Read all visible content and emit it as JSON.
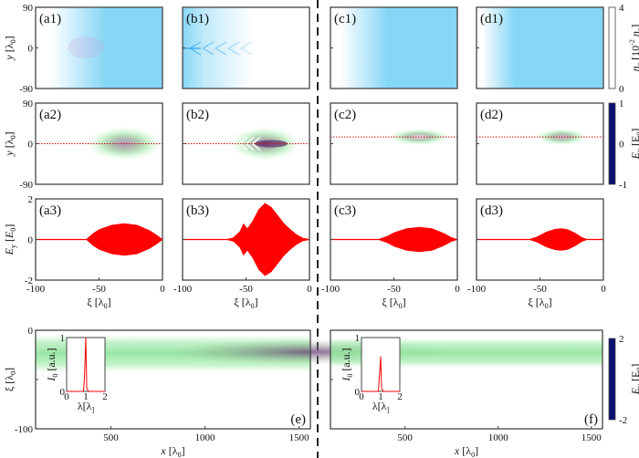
{
  "figure": {
    "xi_label": {
      "main": "ξ [λ",
      "sub": "0",
      "end": "]"
    },
    "y_label": {
      "main": "y [λ",
      "sub": "0",
      "end": "]"
    },
    "ey_label": {
      "main": "E",
      "sub": "y",
      "end": " [E",
      "sub2": "0",
      "end2": "]"
    },
    "x_label": {
      "main": "x [λ",
      "sub": "0",
      "end": "]"
    },
    "colorbars": [
      {
        "name": "ne",
        "title_main": "n",
        "title_sub": "e",
        "title_end": " [10",
        "title_sup": "-2",
        "title_end2": " n",
        "title_sub2": "c",
        "title_end3": "]",
        "ticks": [
          "4",
          "0"
        ],
        "colors": [
          "#ffffff",
          "#7fd6f5",
          "#2c7fd8",
          "#08106e"
        ]
      },
      {
        "name": "ey1",
        "title_main": "E",
        "title_sub": "y",
        "title_end": " [E",
        "title_sub2": "0",
        "title_end2": "]",
        "ticks": [
          "1",
          "0",
          "-1"
        ],
        "colors": [
          "#08106e",
          "#1e5ae6",
          "#39c6f2",
          "#ffffff",
          "#f6e43c",
          "#f08a1e",
          "#d21414",
          "#7a0808"
        ]
      },
      {
        "name": "ey2",
        "title_main": "E",
        "title_sub": "y",
        "title_end": " [E",
        "title_sub2": "0",
        "title_end2": "]",
        "ticks": [
          "2",
          "-2"
        ],
        "colors": [
          "#08106e",
          "#1e5ae6",
          "#39c6f2",
          "#ffffff",
          "#f6e43c",
          "#f08a1e",
          "#d21414",
          "#7a0808"
        ]
      }
    ]
  },
  "chart_data": [
    {
      "id": "a1",
      "label": "(a1)",
      "type": "heatmap",
      "quantity": "n_e",
      "xlim": [
        -100,
        0
      ],
      "ylim": [
        -90,
        90
      ],
      "yticks": [
        "90",
        "0",
        "-90"
      ],
      "profile": {
        "white_until": -88,
        "full_at": -45
      }
    },
    {
      "id": "b1",
      "label": "(b1)",
      "type": "heatmap",
      "quantity": "n_e",
      "xlim": [
        -100,
        0
      ],
      "ylim": [
        -90,
        90
      ],
      "profile": {
        "full_until": -100,
        "white_at": -45
      }
    },
    {
      "id": "c1",
      "label": "(c1)",
      "type": "heatmap",
      "quantity": "n_e",
      "xlim": [
        -100,
        0
      ],
      "ylim": [
        -90,
        90
      ],
      "profile": {
        "white_until": -92,
        "full_at": -55
      }
    },
    {
      "id": "d1",
      "label": "(d1)",
      "type": "heatmap",
      "quantity": "n_e",
      "xlim": [
        -100,
        0
      ],
      "ylim": [
        -90,
        90
      ],
      "profile": {
        "white_until": -96,
        "full_at": -70
      }
    },
    {
      "id": "a2",
      "label": "(a2)",
      "type": "heatmap",
      "quantity": "E_y",
      "xlim": [
        -100,
        0
      ],
      "ylim": [
        -90,
        90
      ],
      "yticks": [
        "90",
        "0",
        "-90"
      ],
      "spot": {
        "xi": -30,
        "y": 0,
        "rxi": 32,
        "ry": 40,
        "core": 0.55
      },
      "line_y": 0
    },
    {
      "id": "b2",
      "label": "(b2)",
      "type": "heatmap",
      "quantity": "E_y",
      "xlim": [
        -100,
        0
      ],
      "ylim": [
        -90,
        90
      ],
      "spot": {
        "xi": -35,
        "y": 0,
        "rxi": 30,
        "ry": 40,
        "core": 0.7
      },
      "line_y": 0
    },
    {
      "id": "c2",
      "label": "(c2)",
      "type": "heatmap",
      "quantity": "E_y",
      "xlim": [
        -100,
        0
      ],
      "ylim": [
        -90,
        90
      ],
      "spot": {
        "xi": -30,
        "y": 15,
        "rxi": 26,
        "ry": 20,
        "core": 0.1
      },
      "line_y": 15
    },
    {
      "id": "d2",
      "label": "(d2)",
      "type": "heatmap",
      "quantity": "E_y",
      "xlim": [
        -100,
        0
      ],
      "ylim": [
        -90,
        90
      ],
      "spot": {
        "xi": -33,
        "y": 15,
        "rxi": 22,
        "ry": 20,
        "core": 0.35
      },
      "line_y": 15
    },
    {
      "id": "a3",
      "label": "(a3)",
      "type": "area",
      "xlim": [
        -100,
        0
      ],
      "ylim": [
        -2,
        2
      ],
      "yticks": [
        "2",
        "0",
        "-2"
      ],
      "xticks": [
        "-100",
        "-50",
        "0"
      ],
      "envelope": {
        "xi": [
          -100,
          -60,
          -55,
          -50,
          -40,
          -30,
          -20,
          -10,
          -5,
          0
        ],
        "amp": [
          0.02,
          0.02,
          0.3,
          0.5,
          0.72,
          0.8,
          0.72,
          0.45,
          0.25,
          0.02
        ]
      }
    },
    {
      "id": "b3",
      "label": "(b3)",
      "type": "area",
      "xlim": [
        -100,
        0
      ],
      "ylim": [
        -2,
        2
      ],
      "xticks": [
        "-100",
        "-50",
        "0"
      ],
      "envelope": {
        "xi": [
          -100,
          -65,
          -60,
          -55,
          -52,
          -49,
          -45,
          -40,
          -35,
          -30,
          -25,
          -20,
          -15,
          -10,
          -5,
          0
        ],
        "amp": [
          0.02,
          0.02,
          0.1,
          0.4,
          0.8,
          0.55,
          0.9,
          1.5,
          1.8,
          1.6,
          1.2,
          0.8,
          0.5,
          0.25,
          0.08,
          0.02
        ]
      }
    },
    {
      "id": "c3",
      "label": "(c3)",
      "type": "area",
      "xlim": [
        -100,
        0
      ],
      "ylim": [
        -2,
        2
      ],
      "xticks": [
        "-100",
        "-50",
        "0"
      ],
      "envelope": {
        "xi": [
          -100,
          -62,
          -55,
          -50,
          -40,
          -30,
          -20,
          -10,
          -5,
          0
        ],
        "amp": [
          0.02,
          0.02,
          0.18,
          0.35,
          0.55,
          0.62,
          0.55,
          0.3,
          0.12,
          0.02
        ]
      }
    },
    {
      "id": "d3",
      "label": "(d3)",
      "type": "area",
      "xlim": [
        -100,
        0
      ],
      "ylim": [
        -2,
        2
      ],
      "xticks": [
        "-100",
        "-50",
        "0"
      ],
      "envelope": {
        "xi": [
          -100,
          -58,
          -52,
          -45,
          -38,
          -33,
          -28,
          -22,
          -17,
          -13,
          0
        ],
        "amp": [
          0.02,
          0.02,
          0.15,
          0.38,
          0.52,
          0.55,
          0.5,
          0.32,
          0.12,
          0.02,
          0.02
        ]
      }
    },
    {
      "id": "e",
      "label": "(e)",
      "type": "heatmap",
      "quantity": "E_y",
      "xlim": [
        100,
        1560
      ],
      "ylim": [
        -100,
        0
      ],
      "xticks": [
        "500",
        "1000",
        "1500"
      ],
      "yticks": [
        "0",
        "-100"
      ],
      "band": {
        "top": -5,
        "bottom": -42,
        "purple_from_x": 1300
      },
      "inset": {
        "type": "line",
        "xlabel": "λ[λ0]",
        "ylabel": "I0 [a.u.]",
        "xticks": [
          "0",
          "1",
          "2"
        ],
        "yticks": [
          "1",
          "0"
        ],
        "peak_x": 1.0,
        "peak_y": 1.0
      }
    },
    {
      "id": "f",
      "label": "(f)",
      "type": "heatmap",
      "quantity": "E_y",
      "xlim": [
        100,
        1560
      ],
      "ylim": [
        -100,
        0
      ],
      "xticks": [
        "500",
        "1000",
        "1500"
      ],
      "band": {
        "top": -8,
        "bottom": -38
      },
      "inset": {
        "type": "line",
        "xlabel": "λ[λ0]",
        "ylabel": "I0 [a.u.]",
        "xticks": [
          "0",
          "1",
          "2"
        ],
        "yticks": [
          "1",
          "0"
        ],
        "peak_x": 1.0,
        "peak_y": 0.65
      }
    }
  ]
}
